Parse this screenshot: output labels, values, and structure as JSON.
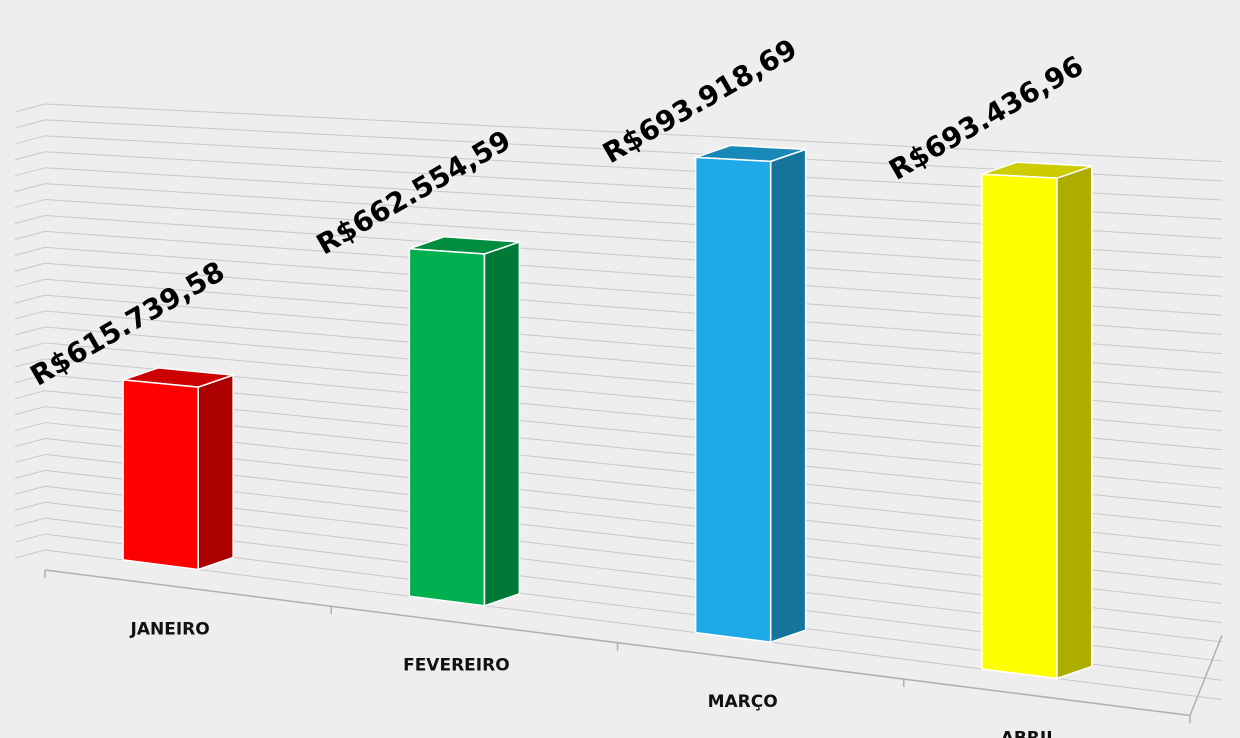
{
  "chart_data": {
    "type": "bar3d",
    "categories": [
      "JANEIRO",
      "FEVEREIRO",
      "MARÇO",
      "ABRIL"
    ],
    "values": [
      615739.58,
      662554.59,
      693918.69,
      693436.96
    ],
    "value_labels": [
      "R$615.739,58",
      "R$662.554,59",
      "R$693.918,69",
      "R$693.436,96"
    ],
    "colors": [
      "#ff0000",
      "#00b050",
      "#1eaae6",
      "#ffff00"
    ],
    "ylim": [
      560000,
      700000
    ],
    "yticks": [
      560000,
      565000,
      570000,
      575000,
      580000,
      585000,
      590000,
      595000,
      600000,
      605000,
      610000,
      615000,
      620000,
      625000,
      630000,
      635000,
      640000,
      645000,
      650000,
      655000,
      660000,
      665000,
      670000,
      675000,
      680000,
      685000,
      690000,
      695000,
      700000
    ],
    "grid": true
  }
}
